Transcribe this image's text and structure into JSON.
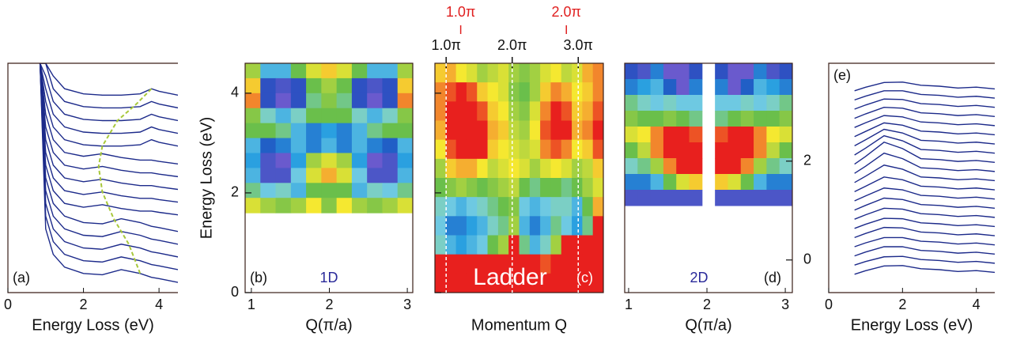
{
  "colormap": [
    "#6a5acd",
    "#1f4fbf",
    "#2aa0e0",
    "#7fd3e3",
    "#6abf4b",
    "#b0d440",
    "#f5e830",
    "#f5a030",
    "#e8201e"
  ],
  "chart_data": [
    {
      "type": "line",
      "panel_label": "(a)",
      "xlabel": "Energy Loss (eV)",
      "xlim": [
        0,
        4.5
      ],
      "xticks": [
        0,
        2,
        4
      ],
      "ylim": [
        0,
        18
      ],
      "color": "#1c2a8a",
      "x": [
        0.85,
        1.0,
        1.2,
        1.5,
        2.0,
        2.5,
        3.0,
        3.5,
        3.8,
        4.0,
        4.5
      ],
      "series": [
        {
          "values": [
            18,
            5,
            3,
            2,
            1.5,
            1.4,
            1.8,
            1.5,
            1.2,
            1.1,
            0.8
          ]
        },
        {
          "values": [
            18,
            6,
            4,
            3,
            2.5,
            2.4,
            2.8,
            2.5,
            2.2,
            2.1,
            1.8
          ]
        },
        {
          "values": [
            18,
            7,
            5,
            4,
            3.5,
            3.4,
            3.8,
            3.5,
            3.2,
            3.1,
            2.8
          ]
        },
        {
          "values": [
            18,
            8,
            6,
            5,
            4.5,
            4.4,
            4.8,
            4.5,
            4.2,
            4.1,
            3.8
          ]
        },
        {
          "values": [
            18,
            9,
            7,
            6,
            5.5,
            5.4,
            5.8,
            5.5,
            5.2,
            5.1,
            4.8
          ]
        },
        {
          "values": [
            18,
            10,
            8,
            7,
            6.7,
            6.9,
            6.6,
            6.4,
            6.4,
            6.3,
            6.1
          ]
        },
        {
          "values": [
            18,
            11,
            9,
            8,
            7.7,
            7.9,
            7.6,
            7.4,
            7.4,
            7.3,
            7.1
          ]
        },
        {
          "values": [
            18,
            12,
            10,
            9,
            8.7,
            8.9,
            8.6,
            8.4,
            8.4,
            8.3,
            8.1
          ]
        },
        {
          "values": [
            18,
            13,
            11,
            10,
            9.7,
            9.9,
            9.6,
            9.4,
            9.4,
            9.3,
            9.1
          ]
        },
        {
          "values": [
            18,
            14,
            12,
            11,
            10.7,
            10.9,
            10.6,
            10.4,
            10.4,
            10.3,
            10.1
          ]
        },
        {
          "values": [
            18,
            15,
            13,
            12,
            11.6,
            11.5,
            11.5,
            11.6,
            12,
            11.8,
            11.5
          ]
        },
        {
          "values": [
            18,
            16,
            14,
            13,
            12.6,
            12.5,
            12.5,
            12.6,
            13,
            12.8,
            12.5
          ]
        },
        {
          "values": [
            18,
            17,
            15,
            14,
            13.6,
            13.5,
            13.5,
            13.6,
            14,
            13.8,
            13.5
          ]
        },
        {
          "values": [
            18,
            18,
            16,
            15,
            14.6,
            14.5,
            14.5,
            14.6,
            15,
            14.8,
            14.5
          ]
        },
        {
          "values": [
            18,
            18,
            17,
            16,
            15.6,
            15.5,
            15.5,
            15.6,
            16,
            15.8,
            15.5
          ]
        }
      ],
      "guide": {
        "color": "#a8c83a",
        "linestyle": "dashed",
        "x": [
          3.5,
          3.2,
          2.8,
          2.5,
          2.4,
          2.5,
          2.9,
          3.4,
          3.8
        ],
        "values": [
          1.5,
          3.8,
          5.8,
          7.9,
          9.9,
          11.5,
          13.5,
          14.8,
          16
        ]
      }
    },
    {
      "type": "heatmap",
      "panel_label": "(b)",
      "annotation": "1D",
      "annotation_color": "#2a2a9a",
      "ylabel": "Energy Loss (eV)",
      "xlabel": "Q(π/a)",
      "xlim": [
        0.92,
        3.07
      ],
      "xticks": [
        1,
        2,
        3
      ],
      "ylim": [
        0,
        4.6
      ],
      "yticks": [
        0,
        2,
        4
      ],
      "extent": [
        0.92,
        3.07,
        1.6,
        4.6
      ],
      "z": [
        [
          0.6,
          0.3,
          0.3,
          0.5,
          0.7,
          0.8,
          0.7,
          0.5,
          0.3,
          0.3,
          0.6
        ],
        [
          0.8,
          0.1,
          0.05,
          0.1,
          0.5,
          0.6,
          0.5,
          0.1,
          0.05,
          0.1,
          0.8
        ],
        [
          0.9,
          0.1,
          0.0,
          0.1,
          0.45,
          0.55,
          0.45,
          0.1,
          0.0,
          0.1,
          0.9
        ],
        [
          0.55,
          0.4,
          0.3,
          0.4,
          0.5,
          0.5,
          0.5,
          0.4,
          0.3,
          0.4,
          0.55
        ],
        [
          0.5,
          0.5,
          0.45,
          0.3,
          0.2,
          0.25,
          0.2,
          0.3,
          0.45,
          0.5,
          0.5
        ],
        [
          0.3,
          0.15,
          0.2,
          0.3,
          0.2,
          0.3,
          0.2,
          0.3,
          0.2,
          0.15,
          0.3
        ],
        [
          0.25,
          0.05,
          0.0,
          0.25,
          0.6,
          0.7,
          0.6,
          0.25,
          0.0,
          0.05,
          0.25
        ],
        [
          0.3,
          0.05,
          0.05,
          0.35,
          0.7,
          0.85,
          0.7,
          0.35,
          0.05,
          0.05,
          0.3
        ],
        [
          0.45,
          0.35,
          0.4,
          0.3,
          0.5,
          0.5,
          0.5,
          0.3,
          0.4,
          0.35,
          0.45
        ],
        [
          0.7,
          0.6,
          0.55,
          0.6,
          0.75,
          0.55,
          0.75,
          0.6,
          0.55,
          0.6,
          0.7
        ]
      ]
    },
    {
      "type": "heatmap",
      "panel_label": "(c)",
      "annotation": "Ladder",
      "annotation_color": "#ffffff",
      "xlabel": "Momentum Q",
      "xlim": [
        0.83,
        3.38
      ],
      "xticks": [
        {
          "value": 1,
          "label": "1.0π"
        },
        {
          "value": 2,
          "label": "2.0π"
        },
        {
          "value": 3,
          "label": "3.0π"
        }
      ],
      "xaxis_side": "top",
      "vlines": true,
      "x2lim": [
        0.756,
        2.35
      ],
      "x2ticks": [
        {
          "value": 1,
          "label": "1.0π"
        },
        {
          "value": 2,
          "label": "2.0π"
        }
      ],
      "x2_color": "#e02020",
      "ylim": [
        0,
        4.6
      ],
      "yticks": [
        0,
        2,
        4
      ],
      "ytick_labels": false,
      "extent": [
        0.83,
        3.38,
        0,
        4.6
      ],
      "z": [
        [
          0.8,
          0.85,
          0.75,
          0.7,
          0.6,
          0.65,
          0.7,
          0.6,
          0.55,
          0.6,
          0.7,
          0.75,
          0.65,
          0.7,
          0.85,
          0.9
        ],
        [
          0.9,
          0.95,
          1,
          0.95,
          0.8,
          0.75,
          0.7,
          0.55,
          0.5,
          0.6,
          0.8,
          0.9,
          0.85,
          0.75,
          0.8,
          0.9
        ],
        [
          0.9,
          1,
          1,
          1,
          0.95,
          0.8,
          0.75,
          0.6,
          0.55,
          0.7,
          0.9,
          1,
          0.95,
          0.8,
          0.85,
          0.95
        ],
        [
          0.85,
          1,
          1,
          1,
          1,
          0.85,
          0.8,
          0.65,
          0.6,
          0.75,
          0.95,
          1,
          1,
          0.85,
          0.9,
          1
        ],
        [
          0.75,
          0.95,
          1,
          1,
          1,
          0.8,
          0.75,
          0.7,
          0.65,
          0.7,
          0.9,
          0.95,
          0.9,
          0.75,
          0.8,
          0.95
        ],
        [
          0.6,
          0.8,
          0.85,
          0.85,
          0.75,
          0.65,
          0.7,
          0.75,
          0.7,
          0.6,
          0.7,
          0.75,
          0.7,
          0.6,
          0.65,
          0.8
        ],
        [
          0.5,
          0.55,
          0.6,
          0.55,
          0.5,
          0.55,
          0.6,
          0.65,
          0.5,
          0.45,
          0.5,
          0.5,
          0.45,
          0.5,
          0.6,
          0.7
        ],
        [
          0.4,
          0.35,
          0.3,
          0.35,
          0.4,
          0.45,
          0.5,
          0.55,
          0.35,
          0.3,
          0.35,
          0.4,
          0.4,
          0.3,
          0.5,
          0.85
        ],
        [
          0.35,
          0.2,
          0.2,
          0.25,
          0.3,
          0.4,
          0.45,
          0.6,
          0.3,
          0.2,
          0.3,
          0.45,
          0.35,
          0.25,
          0.45,
          1
        ],
        [
          0.4,
          0.3,
          0.25,
          0.3,
          0.35,
          0.5,
          0.6,
          1,
          0.45,
          0.3,
          0.4,
          0.6,
          1,
          1,
          1,
          1
        ],
        [
          1,
          1,
          1,
          1,
          1,
          1,
          1,
          1,
          1,
          1,
          0.95,
          1,
          1,
          1,
          1,
          1
        ],
        [
          1,
          1,
          1,
          1,
          1,
          1,
          1,
          1,
          1,
          1,
          1,
          1,
          1,
          1,
          1,
          1
        ]
      ]
    },
    {
      "type": "heatmap",
      "panel_label": "(d)",
      "annotation": "2D",
      "annotation_color": "#2a2a9a",
      "xlabel": "Q(π/a)",
      "xlim": [
        0.95,
        3.09
      ],
      "xticks": [
        1,
        2,
        3
      ],
      "ylim": [
        -0.66,
        3.98
      ],
      "yticks": [
        0,
        2
      ],
      "yaxis_side": "right",
      "extent": [
        0.95,
        3.09,
        1.1,
        3.98
      ],
      "z": [
        [
          0.1,
          0.05,
          0.2,
          0.0,
          0.0,
          0.1,
          null,
          0.1,
          0.0,
          0.0,
          0.2,
          0.05,
          0.1
        ],
        [
          0.2,
          0.25,
          0.3,
          0.15,
          0.0,
          0.2,
          null,
          0.2,
          0.0,
          0.15,
          0.3,
          0.25,
          0.2
        ],
        [
          0.45,
          0.4,
          0.35,
          0.4,
          0.35,
          0.35,
          null,
          0.35,
          0.35,
          0.4,
          0.35,
          0.4,
          0.45
        ],
        [
          0.55,
          0.5,
          0.5,
          0.55,
          0.5,
          0.45,
          null,
          0.45,
          0.5,
          0.55,
          0.5,
          0.5,
          0.55
        ],
        [
          0.7,
          0.75,
          0.9,
          1,
          1,
          0.95,
          null,
          0.95,
          1,
          1,
          0.9,
          0.75,
          0.7
        ],
        [
          0.5,
          0.65,
          0.9,
          1,
          1,
          1,
          null,
          1,
          1,
          1,
          0.9,
          0.65,
          0.5
        ],
        [
          0.4,
          0.45,
          0.6,
          0.9,
          1,
          1,
          null,
          1,
          1,
          0.9,
          0.6,
          0.45,
          0.4
        ],
        [
          0.2,
          0.2,
          0.3,
          0.5,
          0.7,
          0.8,
          null,
          0.8,
          0.7,
          0.5,
          0.3,
          0.2,
          0.2
        ],
        [
          0.05,
          0.05,
          0.05,
          0.05,
          0.05,
          0.05,
          null,
          0.05,
          0.05,
          0.05,
          0.05,
          0.05,
          0.05
        ]
      ]
    },
    {
      "type": "line",
      "panel_label": "(e)",
      "xlabel": "Energy Loss (eV)",
      "xlim": [
        0,
        4.5
      ],
      "xticks": [
        0,
        2,
        4
      ],
      "ylim": [
        0,
        25
      ],
      "color": "#1c2a8a",
      "x": [
        0.7,
        1.0,
        1.5,
        2.0,
        2.5,
        3.0,
        3.5,
        4.0,
        4.5
      ],
      "series": [
        {
          "values": [
            2,
            2.39,
            2.9,
            2.95,
            2.6,
            2.5,
            2.3,
            2.4,
            2.2
          ]
        },
        {
          "values": [
            3,
            3.39,
            3.9,
            3.95,
            3.6,
            3.5,
            3.3,
            3.4,
            3.2
          ]
        },
        {
          "values": [
            4,
            4.42,
            5.0,
            5.0,
            4.6,
            4.5,
            4.3,
            4.4,
            4.2
          ]
        },
        {
          "values": [
            5,
            5.42,
            6.0,
            6.0,
            5.6,
            5.5,
            5.3,
            5.4,
            5.2
          ]
        },
        {
          "values": [
            6,
            6.45,
            7.1,
            7.05,
            6.6,
            6.5,
            6.3,
            6.4,
            6.2
          ]
        },
        {
          "values": [
            7,
            7.45,
            8.1,
            8.05,
            7.6,
            7.5,
            7.3,
            7.4,
            7.2
          ]
        },
        {
          "values": [
            8,
            8.48,
            9.2,
            9.1,
            8.6,
            8.5,
            8.3,
            8.4,
            8.2
          ]
        },
        {
          "values": [
            9,
            9.51,
            10.3,
            10.15,
            9.6,
            9.5,
            9.3,
            9.4,
            9.2
          ]
        },
        {
          "values": [
            10,
            10.54,
            11.4,
            11.2,
            10.6,
            10.5,
            10.3,
            10.4,
            10.2
          ]
        },
        {
          "values": [
            11,
            11.6,
            12.6,
            12.3,
            11.6,
            11.5,
            11.3,
            11.4,
            11.2
          ]
        },
        {
          "values": [
            12,
            12.69,
            13.9,
            13.45,
            12.6,
            12.5,
            12.3,
            12.4,
            12.2
          ]
        },
        {
          "values": [
            13,
            13.78,
            15.2,
            14.6,
            13.6,
            13.5,
            13.3,
            13.4,
            13.2
          ]
        },
        {
          "values": [
            14,
            14.84,
            16.4,
            15.7,
            14.6,
            14.5,
            14.3,
            14.4,
            14.2
          ]
        },
        {
          "values": [
            15,
            15.75,
            17.1,
            16.55,
            15.6,
            15.5,
            15.3,
            15.4,
            15.2
          ]
        },
        {
          "values": [
            16,
            16.66,
            17.8,
            17.4,
            16.6,
            16.5,
            16.3,
            16.4,
            16.2
          ]
        },
        {
          "values": [
            17,
            17.57,
            18.5,
            18.25,
            17.6,
            17.5,
            17.3,
            17.4,
            17.2
          ]
        },
        {
          "values": [
            18,
            18.51,
            19.3,
            19.15,
            18.6,
            18.5,
            18.3,
            18.4,
            18.2
          ]
        },
        {
          "values": [
            19,
            19.48,
            20.2,
            20.1,
            19.6,
            19.5,
            19.3,
            19.4,
            19.2
          ]
        },
        {
          "values": [
            20,
            20.45,
            21.1,
            21.05,
            20.6,
            20.5,
            20.3,
            20.4,
            20.2
          ]
        },
        {
          "values": [
            21,
            21.42,
            22.0,
            22.0,
            21.6,
            21.5,
            21.3,
            21.4,
            21.2
          ]
        },
        {
          "values": [
            22,
            22.39,
            22.9,
            22.95,
            22.6,
            22.5,
            22.3,
            22.4,
            22.2
          ]
        }
      ]
    }
  ]
}
